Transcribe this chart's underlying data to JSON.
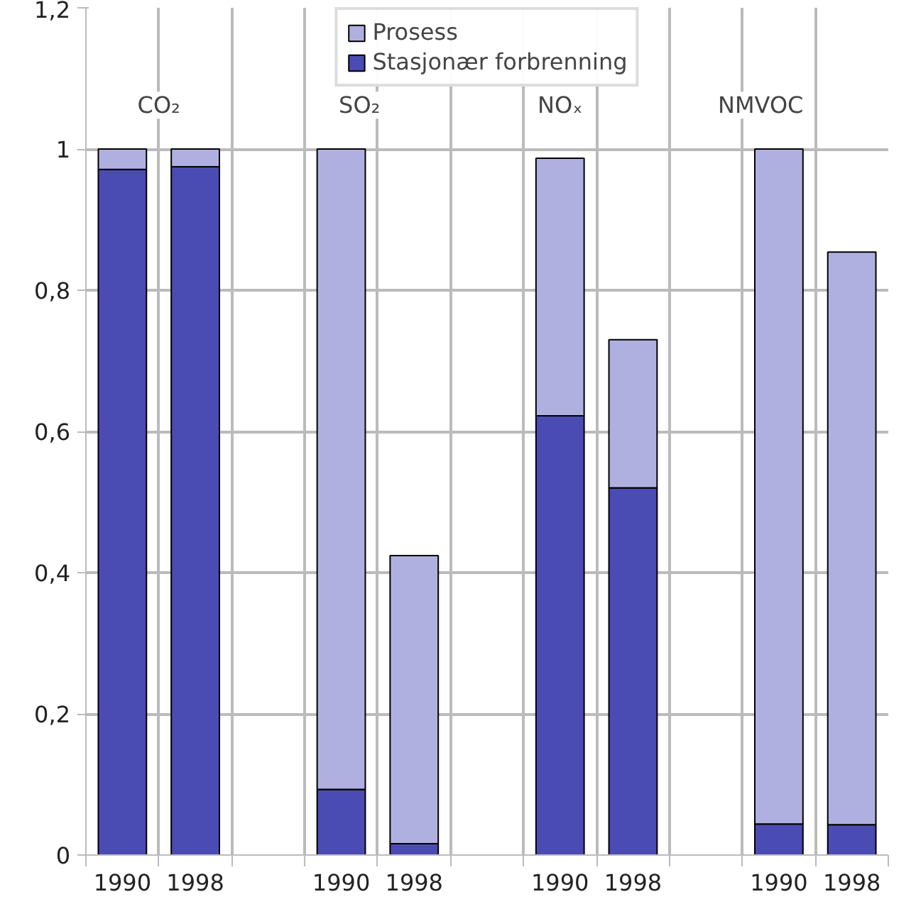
{
  "chart_data": {
    "type": "bar",
    "stacked": true,
    "categories": [
      "1990",
      "1998",
      null,
      "1990",
      "1998",
      null,
      "1990",
      "1998",
      null,
      "1990",
      "1998"
    ],
    "series": [
      {
        "name": "Stasjonær forbrenning",
        "color": "#4b4bb4",
        "values": [
          0.971,
          0.975,
          null,
          0.093,
          0.016,
          null,
          0.622,
          0.52,
          null,
          0.044,
          0.043
        ]
      },
      {
        "name": "Prosess",
        "color": "#b0b0e0",
        "values": [
          0.029,
          0.025,
          null,
          0.907,
          0.408,
          null,
          0.365,
          0.21,
          null,
          0.956,
          0.811
        ]
      }
    ],
    "ylim": [
      0,
      1.2
    ],
    "yticks": [
      0,
      {
        "value": 0.2,
        "label": "0,2"
      },
      {
        "value": 0.4,
        "label": "0,4"
      },
      {
        "value": 0.6,
        "label": "0,6"
      },
      {
        "value": 0.8,
        "label": "0,8"
      },
      1,
      {
        "value": 1.2,
        "label": "1,2"
      }
    ],
    "annotations": [
      "CO₂",
      "SO₂",
      "NOₓ",
      "NMVOC"
    ],
    "grid": true,
    "legend": "top"
  }
}
